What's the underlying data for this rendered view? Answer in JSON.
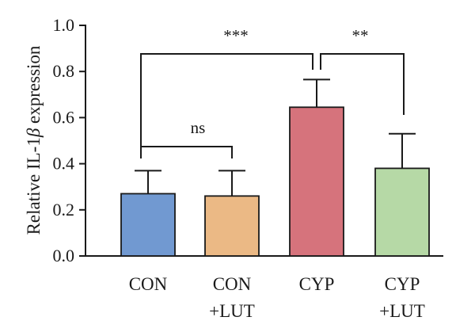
{
  "chart_data": {
    "type": "bar",
    "ylabel_parts": {
      "prefix": "Relative IL-1",
      "symbol": "β",
      "suffix": " expression"
    },
    "ylim": [
      0,
      1.0
    ],
    "yticks": [
      "0.0",
      "0.2",
      "0.4",
      "0.6",
      "0.8",
      "1.0"
    ],
    "yticks_values": [
      0,
      0.2,
      0.4,
      0.6,
      0.8,
      1.0
    ],
    "grid": false,
    "legend": "none",
    "categories": [
      {
        "line1": "CON",
        "line2": ""
      },
      {
        "line1": "CON",
        "line2": "+LUT"
      },
      {
        "line1": "CYP",
        "line2": ""
      },
      {
        "line1": "CYP",
        "line2": "+LUT"
      }
    ],
    "values": [
      0.27,
      0.26,
      0.645,
      0.38
    ],
    "errors": [
      0.1,
      0.11,
      0.12,
      0.15
    ],
    "colors": [
      "#7199d1",
      "#ebb985",
      "#d6737c",
      "#b6d9a6"
    ],
    "significance": [
      {
        "label": "ns",
        "from": 0,
        "to": 1
      },
      {
        "label": "***",
        "from": 0,
        "to": 2
      },
      {
        "label": "**",
        "from": 2,
        "to": 3
      }
    ]
  }
}
